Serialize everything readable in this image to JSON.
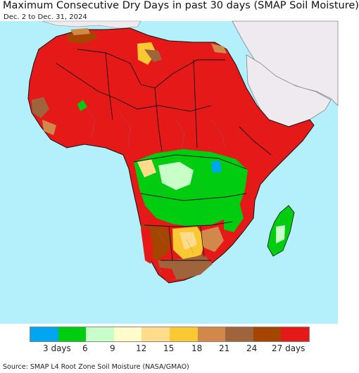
{
  "header": {
    "title": "Maximum Consecutive Dry Days in past 30 days (SMAP Soil Moisture)",
    "subtitle": "Dec. 2 to Dec. 31, 2024"
  },
  "legend": {
    "colors": [
      "#00a6f0",
      "#00cc10",
      "#c8ffc8",
      "#fffccc",
      "#ffdc8c",
      "#fac832",
      "#d2874b",
      "#a0643c",
      "#a54600",
      "#e61919"
    ],
    "labels": [
      "3 days",
      "6",
      "9",
      "12",
      "15",
      "18",
      "21",
      "24",
      "27 days"
    ]
  },
  "footer": {
    "source": "Source: SMAP L4 Root Zone Soil Moisture (NASA/GMAO)"
  },
  "map": {
    "colors": {
      "ocean": "#b3f0fb",
      "non_africa_land": "#eeeaf0",
      "no_data": "#d0d0d0"
    }
  }
}
